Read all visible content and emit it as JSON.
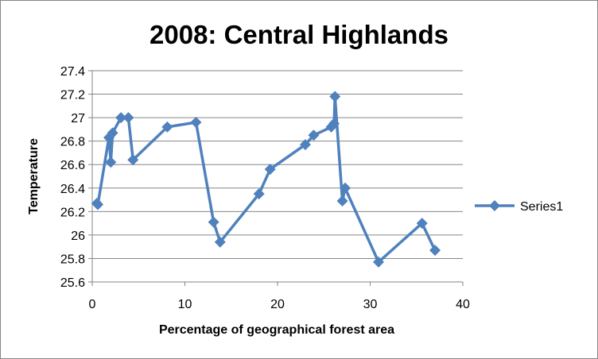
{
  "chart_data": {
    "type": "scatter",
    "title": "2008: Central Highlands",
    "xlabel": "Percentage of geographical forest area",
    "ylabel": "Temperature",
    "xlim": [
      0,
      40
    ],
    "ylim": [
      25.6,
      27.4
    ],
    "x_ticks": [
      "0",
      "10",
      "20",
      "30",
      "40"
    ],
    "y_ticks": [
      "25.6",
      "25.8",
      "26",
      "26.2",
      "26.4",
      "26.6",
      "26.8",
      "27",
      "27.2",
      "27.4"
    ],
    "grid": "horizontal",
    "legend_position": "right",
    "line_color": "#4f81bd",
    "series": [
      {
        "name": "Series1",
        "marker": "diamond",
        "x": [
          0.5,
          0.6,
          1.8,
          2.0,
          2.2,
          3.1,
          3.9,
          4.4,
          8.1,
          11.2,
          13.1,
          13.8,
          18.0,
          19.2,
          23.0,
          23.9,
          25.8,
          26.1,
          26.2,
          27.0,
          27.3,
          30.9,
          35.6,
          37.0
        ],
        "y": [
          26.27,
          26.26,
          26.83,
          26.62,
          26.87,
          27.0,
          27.0,
          26.64,
          26.92,
          26.96,
          26.11,
          25.94,
          26.35,
          26.56,
          26.77,
          26.85,
          26.92,
          26.95,
          27.18,
          26.29,
          26.4,
          25.77,
          26.1,
          25.87
        ]
      }
    ]
  }
}
